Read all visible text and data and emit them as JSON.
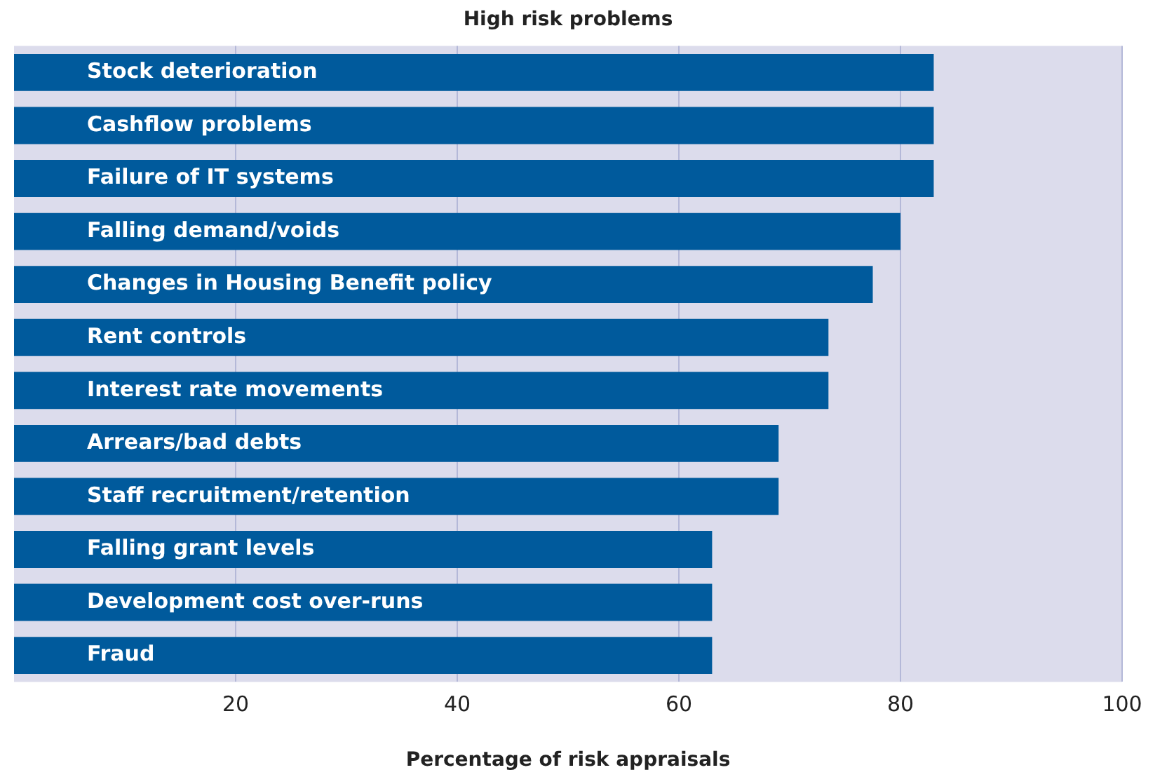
{
  "chart_data": {
    "type": "bar",
    "orientation": "horizontal",
    "title": "High risk problems",
    "xlabel": "Percentage of risk appraisals",
    "categories": [
      "Stock deterioration",
      "Cashflow problems",
      "Failure of IT systems",
      "Falling demand/voids",
      "Changes in Housing Benefit policy",
      "Rent controls",
      "Interest rate movements",
      "Arrears/bad debts",
      "Staff recruitment/retention",
      "Falling grant levels",
      "Development cost over-runs",
      "Fraud"
    ],
    "values": [
      83,
      83,
      83,
      80,
      77.5,
      73.5,
      73.5,
      69,
      69,
      63,
      63,
      63
    ],
    "color": "#005a9c",
    "xlim": [
      0,
      100
    ],
    "xticks": [
      20,
      40,
      60,
      80,
      100
    ],
    "grid": "x",
    "legend": false
  }
}
